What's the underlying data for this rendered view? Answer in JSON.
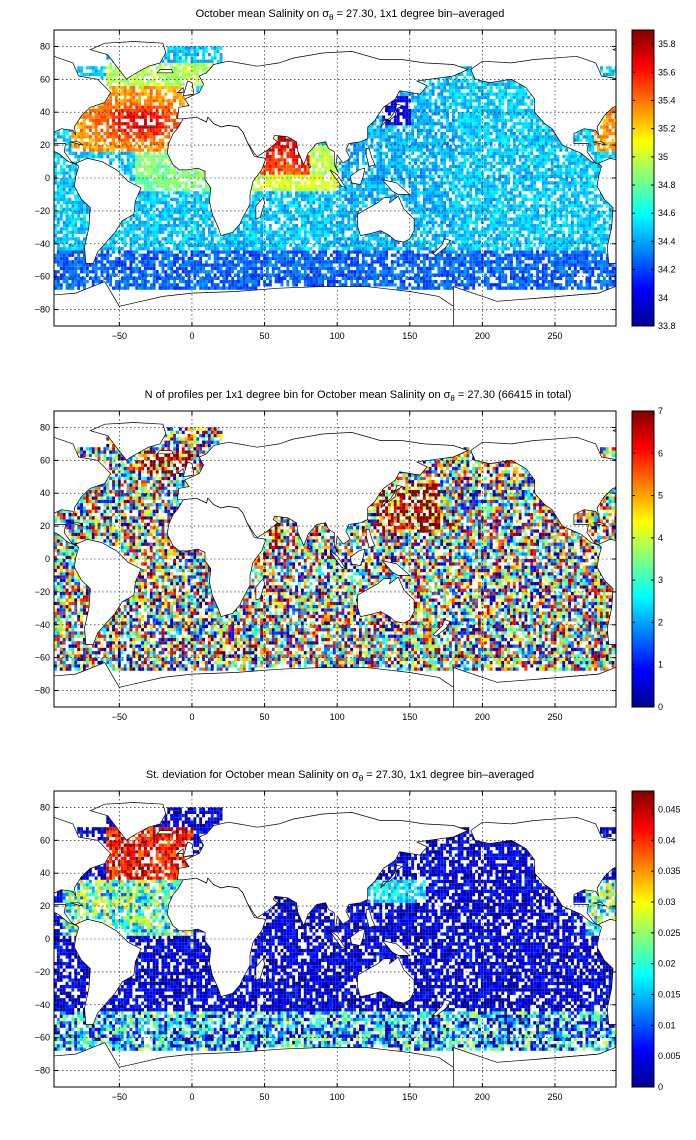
{
  "chart_data": [
    {
      "type": "heatmap",
      "id": "salinity",
      "title_pre": "October mean Salinity on ",
      "title_sym": "σ",
      "title_sub": "θ",
      "title_post": " = 27.30, 1x1 degree bin–averaged",
      "xlim": [
        -95,
        292
      ],
      "ylim": [
        -90,
        90
      ],
      "xticks": [
        -50,
        0,
        50,
        100,
        150,
        200,
        250
      ],
      "yticks": [
        -80,
        -60,
        -40,
        -20,
        0,
        20,
        40,
        60,
        80
      ],
      "xticklabels": [
        "−50",
        "0",
        "50",
        "100",
        "150",
        "200",
        "250"
      ],
      "yticklabels": [
        "−80",
        "−60",
        "−40",
        "−20",
        "0",
        "20",
        "40",
        "60",
        "80"
      ],
      "grid": true,
      "colormap": "jet",
      "clim": [
        33.8,
        35.9
      ],
      "colorbar_ticks": [
        33.8,
        34,
        34.2,
        34.4,
        34.6,
        34.8,
        35,
        35.2,
        35.4,
        35.6,
        35.8
      ],
      "colorbar_ticklabels": [
        "33.8",
        "34",
        "34.2",
        "34.4",
        "34.6",
        "34.8",
        "35",
        "35.2",
        "35.4",
        "35.6",
        "35.8"
      ]
    },
    {
      "type": "heatmap",
      "id": "profiles",
      "title_pre": "N of profiles per 1x1 degree bin for October mean Salinity on ",
      "title_sym": "σ",
      "title_sub": "θ",
      "title_post": " = 27.30 (66415 in total)",
      "xlim": [
        -95,
        292
      ],
      "ylim": [
        -90,
        90
      ],
      "xticks": [
        -50,
        0,
        50,
        100,
        150,
        200,
        250
      ],
      "yticks": [
        -80,
        -60,
        -40,
        -20,
        0,
        20,
        40,
        60,
        80
      ],
      "xticklabels": [
        "−50",
        "0",
        "50",
        "100",
        "150",
        "200",
        "250"
      ],
      "yticklabels": [
        "−80",
        "−60",
        "−40",
        "−20",
        "0",
        "20",
        "40",
        "60",
        "80"
      ],
      "grid": true,
      "colormap": "jet",
      "clim": [
        0,
        7
      ],
      "colorbar_ticks": [
        0,
        1,
        2,
        3,
        4,
        5,
        6,
        7
      ],
      "colorbar_ticklabels": [
        "0",
        "1",
        "2",
        "3",
        "4",
        "5",
        "6",
        "7"
      ]
    },
    {
      "type": "heatmap",
      "id": "stdev",
      "title_pre": "St. deviation for October mean Salinity on ",
      "title_sym": "σ",
      "title_sub": "θ",
      "title_post": " = 27.30, 1x1 degree bin–averaged",
      "xlim": [
        -95,
        292
      ],
      "ylim": [
        -90,
        90
      ],
      "xticks": [
        -50,
        0,
        50,
        100,
        150,
        200,
        250
      ],
      "yticks": [
        -80,
        -60,
        -40,
        -20,
        0,
        20,
        40,
        60,
        80
      ],
      "xticklabels": [
        "−50",
        "0",
        "50",
        "100",
        "150",
        "200",
        "250"
      ],
      "yticklabels": [
        "−80",
        "−60",
        "−40",
        "−20",
        "0",
        "20",
        "40",
        "60",
        "80"
      ],
      "grid": true,
      "colormap": "jet",
      "clim": [
        0,
        0.048
      ],
      "colorbar_ticks": [
        0,
        0.005,
        0.01,
        0.015,
        0.02,
        0.025,
        0.03,
        0.035,
        0.04,
        0.045
      ],
      "colorbar_ticklabels": [
        "0",
        "0.005",
        "0.01",
        "0.015",
        "0.02",
        "0.025",
        "0.03",
        "0.035",
        "0.04",
        "0.045"
      ]
    }
  ]
}
